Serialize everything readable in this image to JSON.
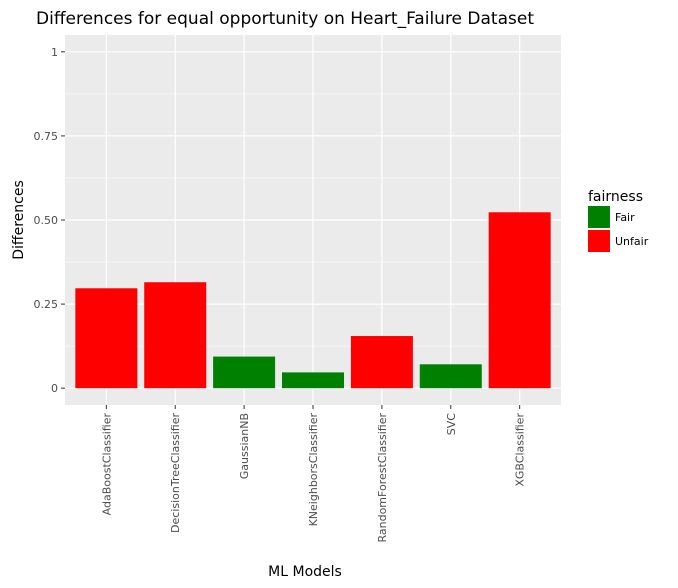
{
  "chart_data": {
    "type": "bar",
    "title": "Differences for equal opportunity on Heart_Failure Dataset",
    "xlabel": "ML Models",
    "ylabel": "Differences",
    "categories": [
      "AdaBoostClassifier",
      "DecisionTreeClassifier",
      "GaussianNB",
      "KNeighborsClassifier",
      "RandomForestClassifier",
      "SVC",
      "XGBClassifier"
    ],
    "values": [
      0.297,
      0.315,
      0.094,
      0.047,
      0.155,
      0.071,
      0.523
    ],
    "fairness": [
      "Unfair",
      "Unfair",
      "Fair",
      "Fair",
      "Unfair",
      "Fair",
      "Unfair"
    ],
    "ylim": [
      -0.05,
      1.05
    ],
    "yticks": [
      0,
      0.25,
      0.5,
      0.75,
      1
    ],
    "ytick_labels": [
      "0",
      "0.25",
      "0.50",
      "0.75",
      "1"
    ],
    "grid": true,
    "legend": {
      "title": "fairness",
      "placement": "right",
      "entries": [
        {
          "label": "Fair",
          "color": "#008000"
        },
        {
          "label": "Unfair",
          "color": "#ff0000"
        }
      ]
    },
    "colors": {
      "Fair": "#008000",
      "Unfair": "#ff0000",
      "panel": "#ebebeb",
      "grid": "#ffffff"
    }
  }
}
